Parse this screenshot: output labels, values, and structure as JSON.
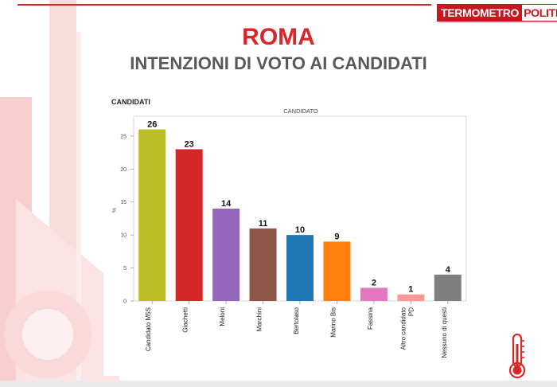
{
  "header": {
    "logo_part1": "TERMOMETRO",
    "logo_part2": "POLITICO",
    "title": "ROMA",
    "subtitle": "INTENZIONI DI VOTO AI CANDIDATI",
    "section_label": "CANDIDATI"
  },
  "icons": {
    "thermometer": "thermometer-icon"
  },
  "colors": {
    "accent": "#d9262b"
  },
  "chart_data": {
    "type": "bar",
    "title": "CANDIDATO",
    "xlabel": "",
    "ylabel": "%",
    "ylim": [
      0,
      28
    ],
    "yticks": [
      0,
      5,
      10,
      15,
      20,
      25
    ],
    "grid": false,
    "categories": [
      "Candidato M5S",
      "Giachetti",
      "Meloni",
      "Marchini",
      "Bertolaso",
      "Marino Bis",
      "Fassina",
      "Altro candidato PD",
      "Nessuno di questi"
    ],
    "category_lines": [
      [
        "Candidato M5S"
      ],
      [
        "Giachetti"
      ],
      [
        "Meloni"
      ],
      [
        "Marchini"
      ],
      [
        "Bertolaso"
      ],
      [
        "Marino Bis"
      ],
      [
        "Fassina"
      ],
      [
        "Altro candidato",
        "PD"
      ],
      [
        "Nessuno di questi"
      ]
    ],
    "values": [
      26,
      23,
      14,
      11,
      10,
      9,
      2,
      1,
      4
    ],
    "colors": [
      "#bcbd22",
      "#d62728",
      "#9467bd",
      "#8c564b",
      "#1f77b4",
      "#ff7f0e",
      "#e377c2",
      "#ff9896",
      "#7f7f7f"
    ]
  }
}
